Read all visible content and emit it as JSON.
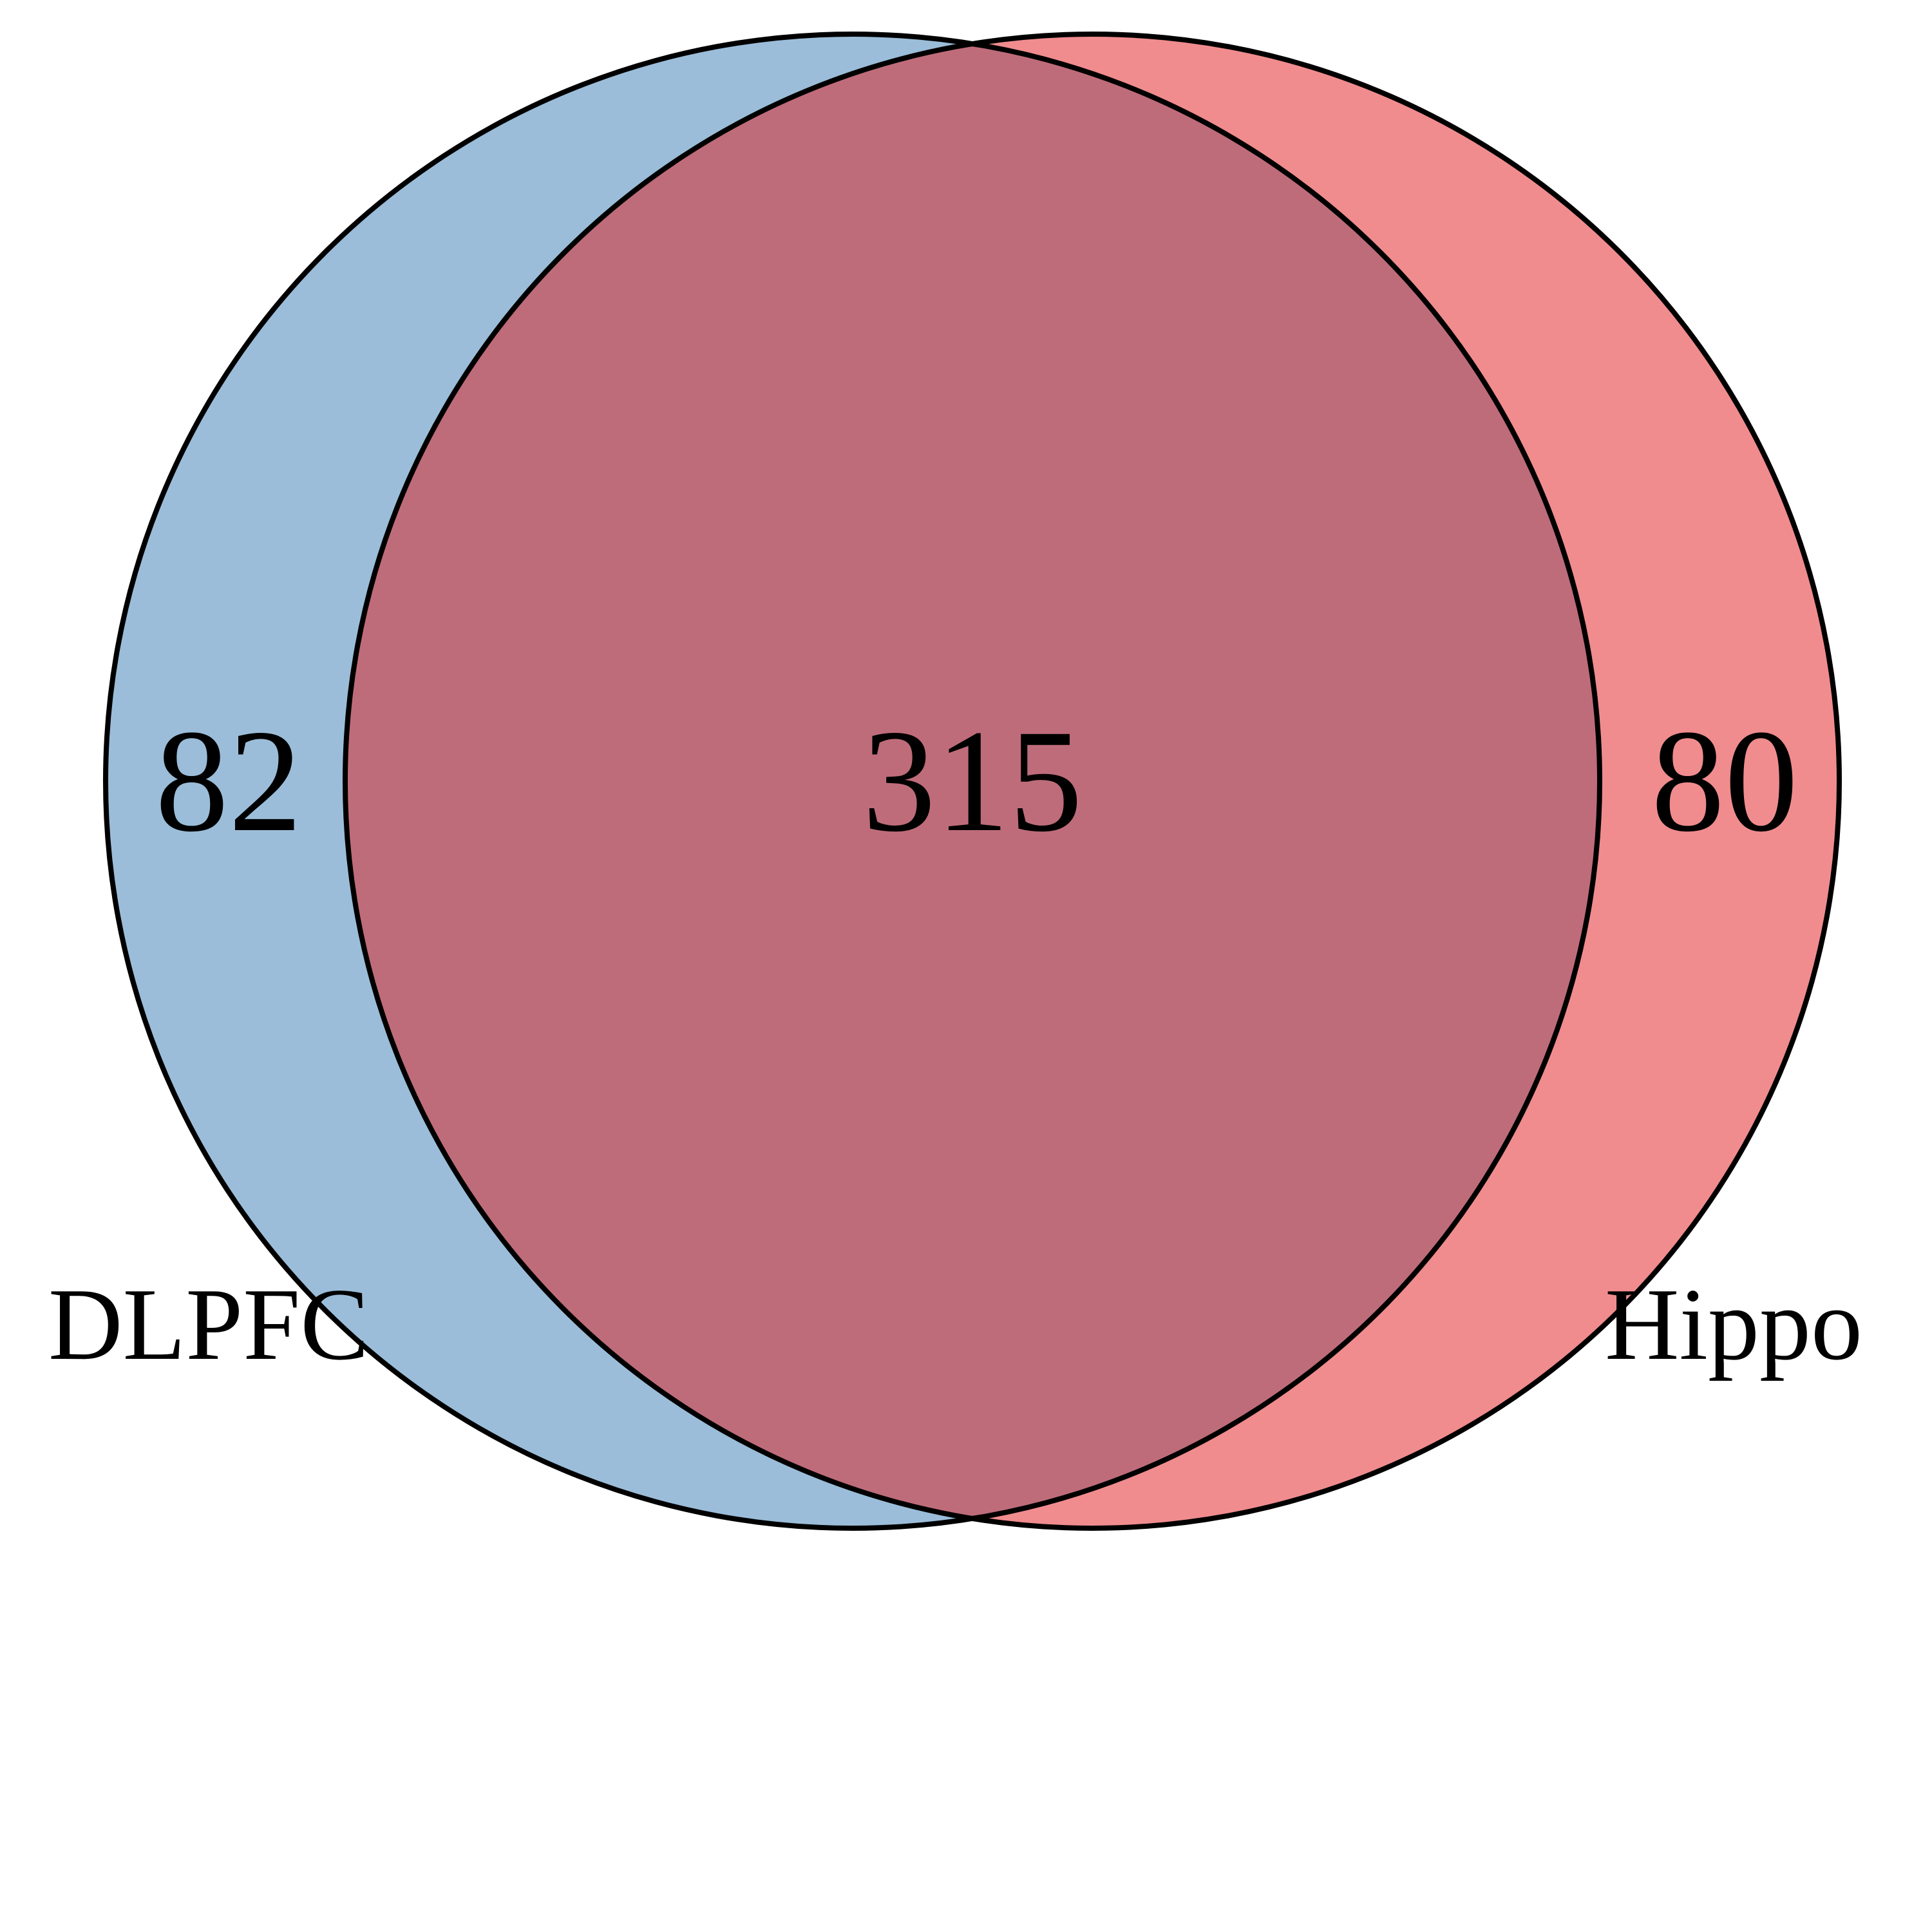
{
  "diagram": {
    "type": "venn",
    "sets": [
      {
        "name": "DLPFC",
        "color": "#9bbdd9"
      },
      {
        "name": "Hippo",
        "color": "#f08c8e"
      }
    ],
    "overlap_color": "#bf6c7a",
    "outline_color": "#000000",
    "counts": {
      "only_dlpfc": "82",
      "both": "315",
      "only_hippo": "80"
    }
  }
}
